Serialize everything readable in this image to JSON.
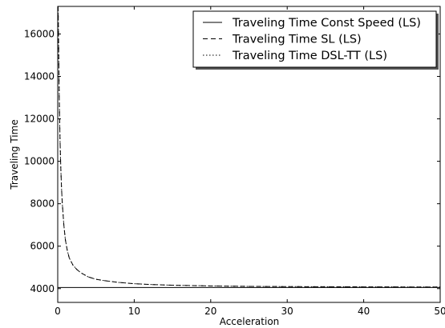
{
  "chart_data": {
    "type": "line",
    "title": "",
    "xlabel": "Acceleration",
    "ylabel": "Traveling Time",
    "xlim": [
      0,
      50
    ],
    "ylim": [
      3350,
      17300
    ],
    "xticks": [
      0,
      10,
      20,
      30,
      40,
      50
    ],
    "yticks": [
      4000,
      6000,
      8000,
      10000,
      12000,
      14000,
      16000
    ],
    "grid": false,
    "legend_position": "top-right",
    "series": [
      {
        "name": "Traveling Time Const Speed (LS)",
        "style": "solid",
        "color": "#000000",
        "x": [
          0.01,
          50
        ],
        "y": [
          4050,
          4050
        ]
      },
      {
        "name": "Traveling Time SL (LS)",
        "style": "dashed",
        "color": "#000000",
        "x": [
          0.05,
          0.1,
          0.2,
          0.3,
          0.4,
          0.5,
          0.6,
          0.8,
          1,
          1.25,
          1.5,
          2,
          2.5,
          3,
          4,
          5,
          6,
          8,
          10,
          12,
          15,
          20,
          25,
          30,
          35,
          40,
          45,
          50
        ],
        "y": [
          17300,
          16000,
          13000,
          11000,
          9700,
          8700,
          8000,
          7000,
          6300,
          5800,
          5450,
          5100,
          4900,
          4750,
          4550,
          4440,
          4380,
          4290,
          4230,
          4195,
          4160,
          4125,
          4105,
          4095,
          4088,
          4082,
          4078,
          4075
        ]
      },
      {
        "name": "Traveling Time DSL-TT (LS)",
        "style": "dotted",
        "color": "#000000",
        "x": [
          0.05,
          0.1,
          0.2,
          0.3,
          0.4,
          0.5,
          0.6,
          0.8,
          1,
          1.25,
          1.5,
          2,
          2.5,
          3,
          4,
          5,
          6,
          8,
          10,
          12,
          15,
          20,
          25,
          30,
          35,
          40,
          45,
          50
        ],
        "y": [
          17300,
          16000,
          13000,
          11000,
          9700,
          8700,
          8000,
          7000,
          6300,
          5800,
          5450,
          5100,
          4900,
          4750,
          4550,
          4440,
          4380,
          4290,
          4230,
          4195,
          4160,
          4125,
          4105,
          4095,
          4088,
          4082,
          4078,
          4075
        ]
      }
    ]
  }
}
